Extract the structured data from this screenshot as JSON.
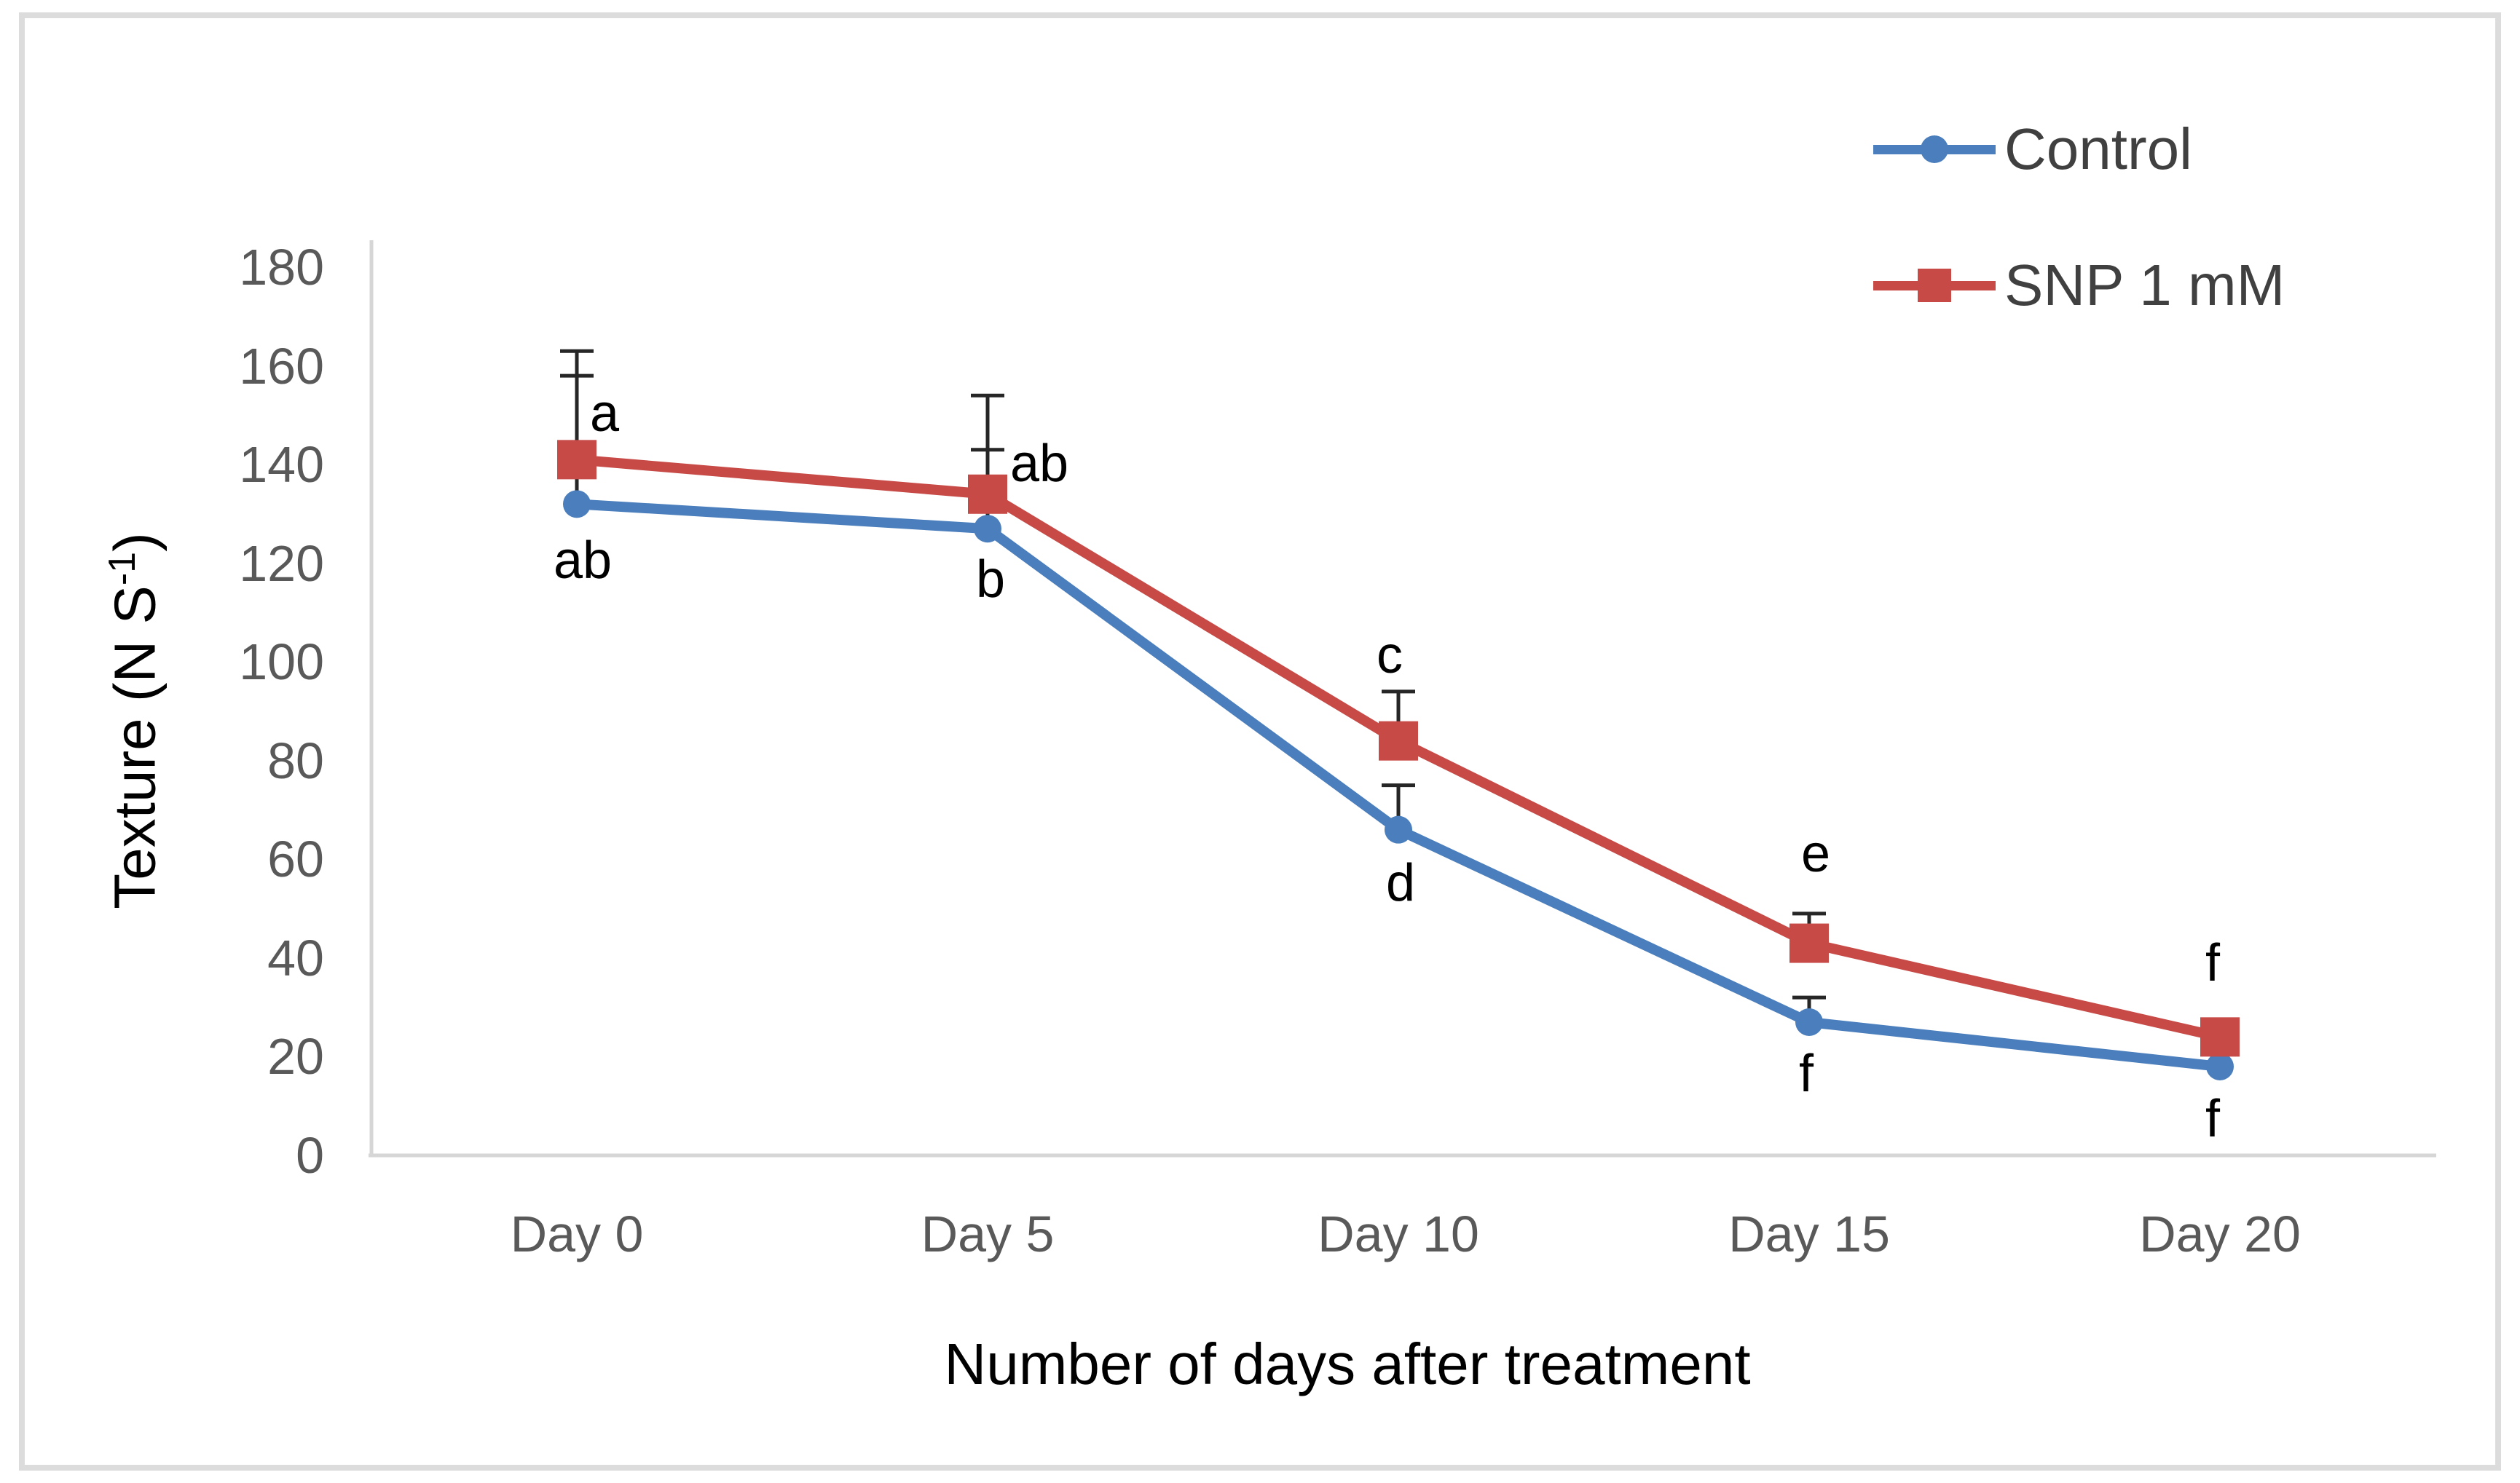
{
  "chart_data": {
    "type": "line",
    "title": "",
    "xlabel": "Number of days after treatment",
    "ylabel": "Texture (N S⁻¹)",
    "ylabel_parts": {
      "main": "Texture (N S",
      "sup": "-1",
      "close": ")"
    },
    "categories": [
      "Day 0",
      "Day 5",
      "Day 10",
      "Day 15",
      "Day 20"
    ],
    "y_ticks": [
      0,
      20,
      40,
      60,
      80,
      100,
      120,
      140,
      160,
      180
    ],
    "ylim": [
      0,
      180
    ],
    "grid": false,
    "legend_position": "top-right",
    "axis_line_color": "#D6D6D6",
    "error_bar_color": "#262626",
    "series": [
      {
        "name": "Control",
        "color": "#4A7EBC",
        "marker": "circle",
        "values": [
          132,
          127,
          66,
          27,
          18
        ],
        "error_up": [
          26,
          16,
          9,
          5,
          0
        ],
        "point_labels": [
          {
            "text": "ab",
            "dx": 8,
            "dy": 78
          },
          {
            "text": "b",
            "dx": 4,
            "dy": 70
          },
          {
            "text": "d",
            "dx": 3,
            "dy": 73
          },
          {
            "text": "f",
            "dx": -4,
            "dy": 71
          },
          {
            "text": "f",
            "dx": -10,
            "dy": 72
          }
        ]
      },
      {
        "name": "SNP 1 mM",
        "color": "#C74A47",
        "marker": "square",
        "values": [
          141,
          134,
          84,
          43,
          24
        ],
        "error_up": [
          22,
          20,
          10,
          6,
          0
        ],
        "point_labels": [
          {
            "text": "a",
            "dx": 38,
            "dy": -63
          },
          {
            "text": "ab",
            "dx": 71,
            "dy": -42
          },
          {
            "text": "c",
            "dx": -12,
            "dy": -118
          },
          {
            "text": "e",
            "dx": 9,
            "dy": -123
          },
          {
            "text": "f",
            "dx": -10,
            "dy": -101
          }
        ]
      }
    ]
  }
}
